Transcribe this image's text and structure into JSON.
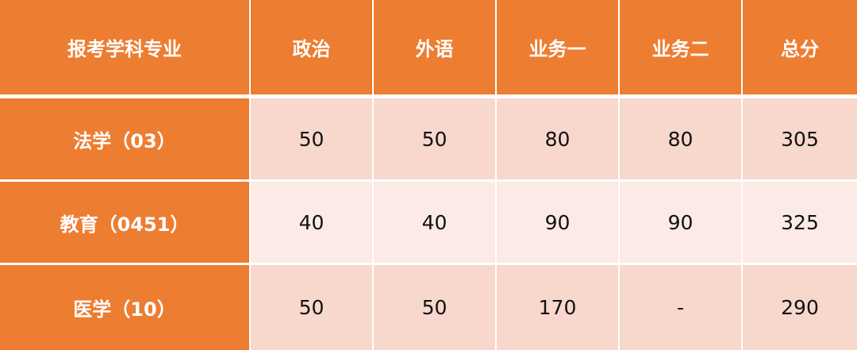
{
  "colors": {
    "header": "#ED7D31",
    "row_odd": "#F8D7CC",
    "row_even": "#FBEAE5"
  },
  "chart_data": {
    "type": "table",
    "headers": [
      "报考学科专业",
      "政治",
      "外语",
      "业务一",
      "业务二",
      "总分"
    ],
    "rows": [
      [
        "法学（03）",
        "50",
        "50",
        "80",
        "80",
        "305"
      ],
      [
        "教育（0451）",
        "40",
        "40",
        "90",
        "90",
        "325"
      ],
      [
        "医学（10）",
        "50",
        "50",
        "170",
        "-",
        "290"
      ]
    ]
  }
}
